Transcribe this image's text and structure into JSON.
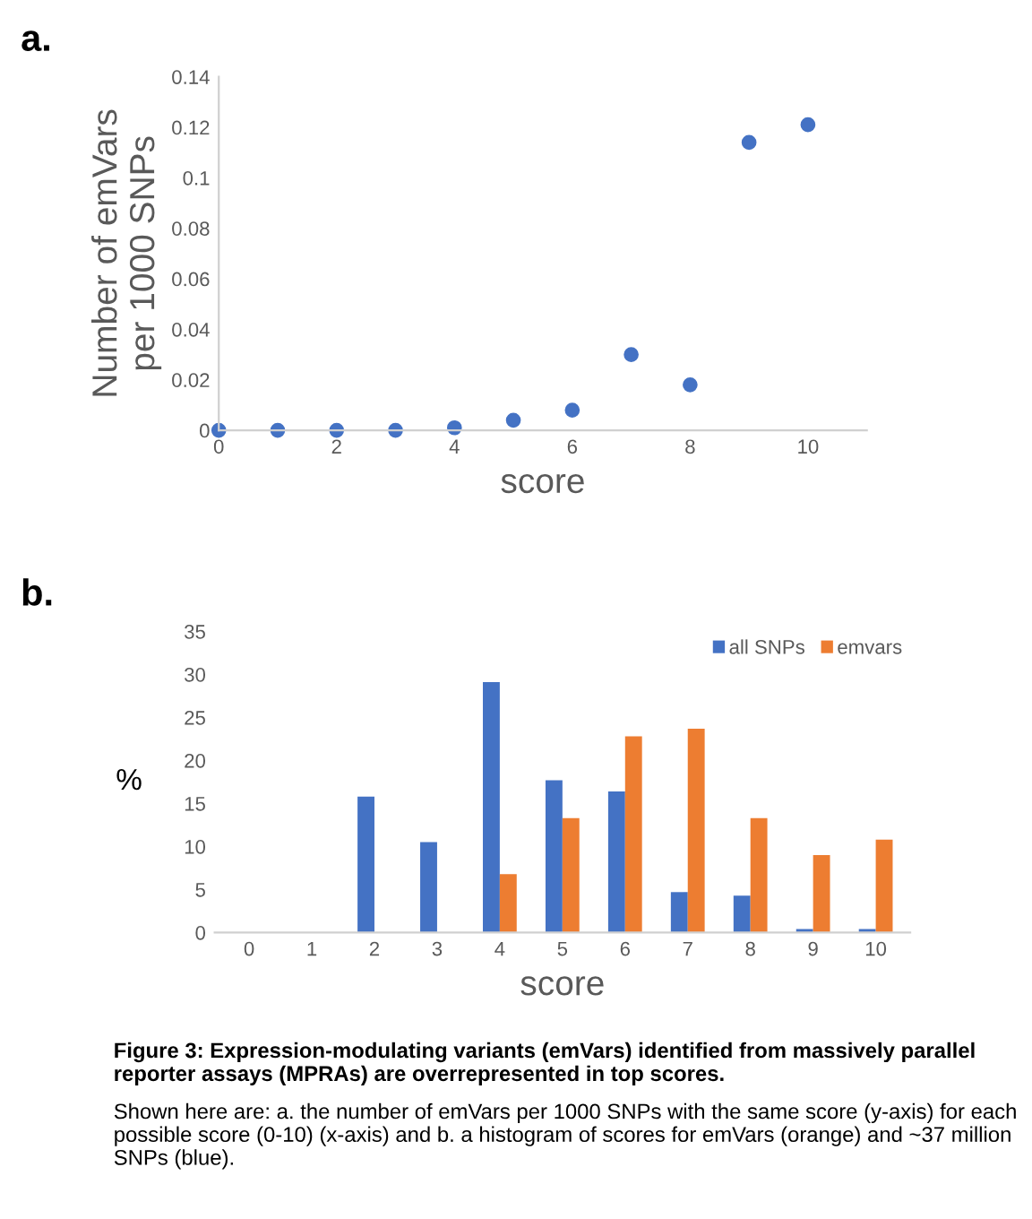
{
  "chart_data": [
    {
      "type": "scatter",
      "title": "a.",
      "xlabel": "score",
      "ylabel": "Number of emVars\nper 1000 SNPs",
      "x": [
        0,
        1,
        2,
        3,
        4,
        5,
        6,
        7,
        8,
        9,
        10
      ],
      "series": [
        {
          "color": "#4472c4",
          "values": [
            0,
            0,
            0,
            0,
            0.001,
            0.004,
            0.008,
            0.03,
            0.018,
            0.114,
            0.121
          ]
        }
      ],
      "xlim": [
        0,
        11
      ],
      "xticks": [
        0,
        2,
        4,
        6,
        8,
        10
      ],
      "ylim": [
        0,
        0.14
      ],
      "yticks": [
        0,
        0.02,
        0.04,
        0.06,
        0.08,
        0.1,
        0.12,
        0.14
      ],
      "marker": "circle",
      "grid": false
    },
    {
      "type": "bar",
      "title": "b.",
      "xlabel": "score",
      "ylabel": "%",
      "categories": [
        "0",
        "1",
        "2",
        "3",
        "4",
        "5",
        "6",
        "7",
        "8",
        "9",
        "10"
      ],
      "series": [
        {
          "name": "all SNPs",
          "color": "#4472c4",
          "values": [
            null,
            0,
            15.8,
            10.5,
            29.1,
            17.7,
            16.4,
            4.7,
            4.3,
            0.4,
            0.4
          ]
        },
        {
          "name": "emvars",
          "color": "#ed7d31",
          "values": [
            0,
            0,
            0,
            0,
            6.8,
            13.3,
            22.8,
            23.7,
            13.3,
            9.0,
            10.8
          ]
        }
      ],
      "ylim": [
        0,
        35
      ],
      "yticks": [
        0,
        5,
        10,
        15,
        20,
        25,
        30,
        35
      ],
      "legend": "top right",
      "grid": false,
      "annotations": [
        "Figure 3: Expression-modulating variants (emVars) identified from massively parallel reporter assays (MPRAs) are overrepresented in top scores.",
        "Shown here are: a. the number of emVars per 1000 SNPs with the same score (y-axis) for each possible score (0-10) (x-axis) and b. a histogram of scores for emVars (orange) and ~37 million SNPs (blue)."
      ]
    }
  ]
}
